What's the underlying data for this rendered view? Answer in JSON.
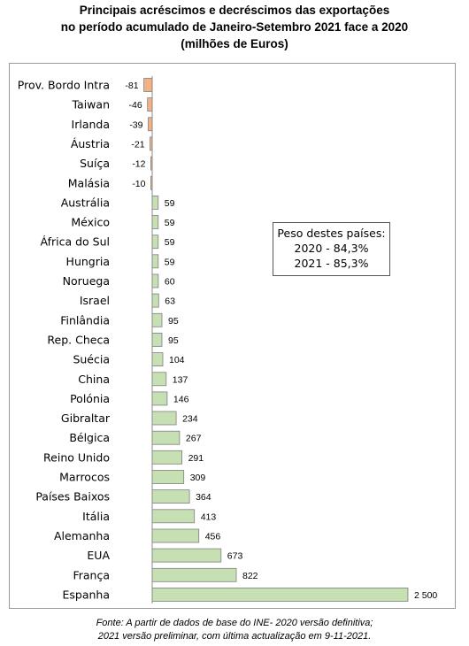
{
  "title": {
    "line1": "Principais acréscimos e decréscimos das exportações",
    "line2": "no período acumulado de Janeiro-Setembro 2021 face a 2020",
    "line3": "(milhões de Euros)"
  },
  "note": {
    "heading": "Peso destes países:",
    "line1": "2020 - 84,3%",
    "line2": "2021 - 85,3%"
  },
  "source": {
    "line1": "Fonte: A partir de dados de base do INE- 2020 versão definitiva;",
    "line2": "2021 versão preliminar, com última actualização em 9-11-2021."
  },
  "colors": {
    "positive": "#c6e0b4",
    "negative": "#f4b183",
    "border": "#7f7f7f"
  },
  "chart_data": {
    "type": "bar",
    "orientation": "horizontal",
    "title": "Principais acréscimos e decréscimos das exportações no período acumulado de Janeiro-Setembro 2021 face a 2020 (milhões de Euros)",
    "categories": [
      "Prov. Bordo Intra",
      "Taiwan",
      "Irlanda",
      "Áustria",
      "Suíça",
      "Malásia",
      "Austrália",
      "México",
      "África do Sul",
      "Hungria",
      "Noruega",
      "Israel",
      "Finlândia",
      "Rep. Checa",
      "Suécia",
      "China",
      "Polónia",
      "Gibraltar",
      "Bélgica",
      "Reino Unido",
      "Marrocos",
      "Países Baixos",
      "Itália",
      "Alemanha",
      "EUA",
      "França",
      "Espanha"
    ],
    "values": [
      -81,
      -46,
      -39,
      -21,
      -12,
      -10,
      59,
      59,
      59,
      59,
      60,
      63,
      95,
      95,
      104,
      137,
      146,
      234,
      267,
      291,
      309,
      364,
      413,
      456,
      673,
      822,
      2500
    ],
    "value_labels": [
      "-81",
      "-46",
      "-39",
      "-21",
      "-12",
      "-10",
      "59",
      "59",
      "59",
      "59",
      "60",
      "63",
      "95",
      "95",
      "104",
      "137",
      "146",
      "234",
      "267",
      "291",
      "309",
      "364",
      "413",
      "456",
      "673",
      "822",
      "2 500"
    ],
    "xlim": [
      -81,
      2500
    ],
    "grid": false,
    "legend": "none"
  }
}
